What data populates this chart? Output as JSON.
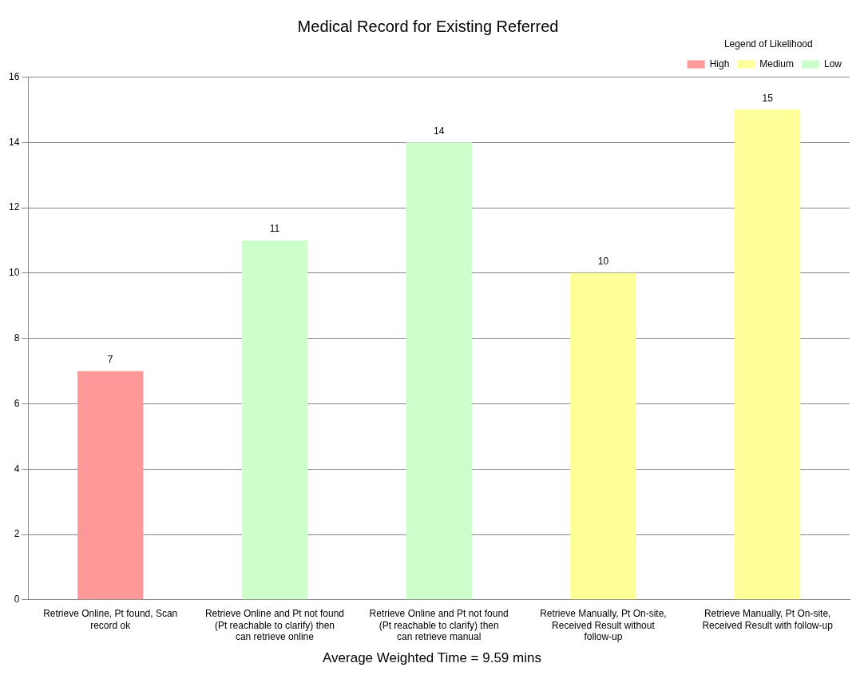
{
  "chart_data": {
    "type": "bar",
    "title": "Medical Record for Existing Referred",
    "categories": [
      "Retrieve Online, Pt found, Scan record ok",
      "Retrieve Online and Pt not found (Pt reachable to clarify) then can retrieve online",
      "Retrieve Online and Pt not found (Pt reachable to clarify) then can retrieve manual",
      "Retrieve Manually, Pt On-site, Received Result without follow-up",
      "Retrieve Manually, Pt On-site, Received Result with follow-up"
    ],
    "series": [
      {
        "name": "High",
        "color": "#ff9999",
        "values": [
          7,
          null,
          null,
          null,
          null
        ]
      },
      {
        "name": "Medium",
        "color": "#ffff99",
        "values": [
          null,
          null,
          null,
          10,
          15
        ]
      },
      {
        "name": "Low",
        "color": "#ccffcc",
        "values": [
          null,
          11,
          14,
          null,
          null
        ]
      }
    ],
    "legend_title": "Legend of Likelihood",
    "legend": "top right",
    "ylim": [
      0,
      16
    ],
    "yticks": [
      0,
      2,
      4,
      6,
      8,
      10,
      12,
      14,
      16
    ],
    "grid": "y",
    "data_labels": true,
    "annotations": [
      "Average Weighted Time = 9.59 mins"
    ]
  }
}
